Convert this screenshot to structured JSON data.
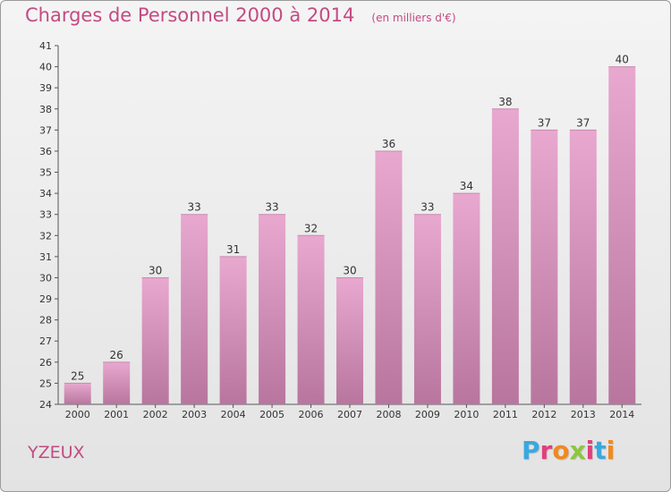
{
  "header": {
    "title": "Charges de Personnel 2000 à 2014",
    "subtitle": "(en milliers d'€)"
  },
  "footer": {
    "commune": "YZEUX",
    "logo_text": "Proxiti"
  },
  "colors": {
    "bar_top": "#e8a8cf",
    "bar_bottom": "#b8769e",
    "title": "#c34b82",
    "logo": [
      "#3aa8df",
      "#e0407a",
      "#f08a1e",
      "#8dc63f",
      "#e0407a",
      "#3aa8df",
      "#f08a1e"
    ]
  },
  "chart_data": {
    "type": "bar",
    "categories": [
      "2000",
      "2001",
      "2002",
      "2003",
      "2004",
      "2005",
      "2006",
      "2007",
      "2008",
      "2009",
      "2010",
      "2011",
      "2012",
      "2013",
      "2014"
    ],
    "values": [
      25,
      26,
      30,
      33,
      31,
      33,
      32,
      30,
      36,
      33,
      34,
      38,
      37,
      37,
      40
    ],
    "title": "Charges de Personnel 2000 à 2014",
    "ylim": [
      24,
      41
    ],
    "yticks": [
      24,
      25,
      26,
      27,
      28,
      29,
      30,
      31,
      32,
      33,
      34,
      35,
      36,
      37,
      38,
      39,
      40,
      41
    ],
    "grid": false,
    "legend": "none"
  }
}
